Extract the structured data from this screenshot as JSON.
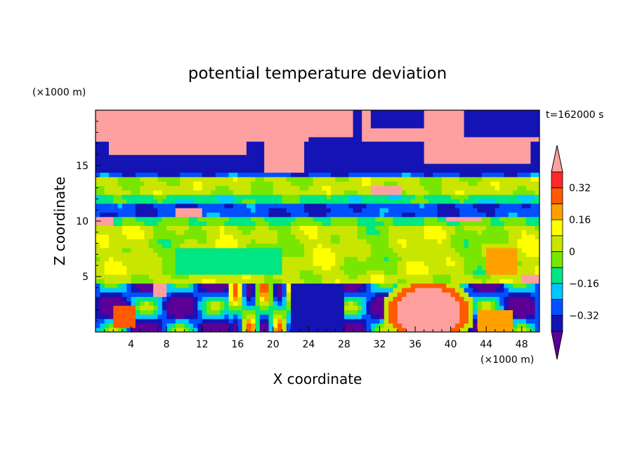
{
  "chart_data": {
    "type": "heatmap",
    "title": "potential temperature deviation",
    "xlabel": "X coordinate",
    "ylabel": "Z coordinate",
    "x_unit": "(×1000 m)",
    "y_unit": "(×1000 m)",
    "time_label": "t=162000 s",
    "xlim": [
      0,
      50
    ],
    "ylim": [
      0,
      20
    ],
    "x_ticks": [
      "4",
      "8",
      "12",
      "16",
      "20",
      "24",
      "28",
      "32",
      "36",
      "40",
      "44",
      "48"
    ],
    "y_ticks": [
      "5",
      "10",
      "15"
    ],
    "colorbar": {
      "tick_labels": [
        "0.32",
        "0.16",
        "0",
        "−0.16",
        "−0.32"
      ],
      "tick_values": [
        0.32,
        0.16,
        0,
        -0.16,
        -0.32
      ],
      "levels": [
        -0.4,
        -0.32,
        -0.24,
        -0.16,
        -0.08,
        0,
        0.08,
        0.16,
        0.24,
        0.32,
        0.4
      ],
      "colors": [
        "#5a0096",
        "#1414b4",
        "#0050ff",
        "#00c8ff",
        "#00e682",
        "#78e600",
        "#c8e600",
        "#ffff00",
        "#ffa000",
        "#ff5a00",
        "#ff2828",
        "#ffa0a0"
      ],
      "extend": "both"
    }
  }
}
